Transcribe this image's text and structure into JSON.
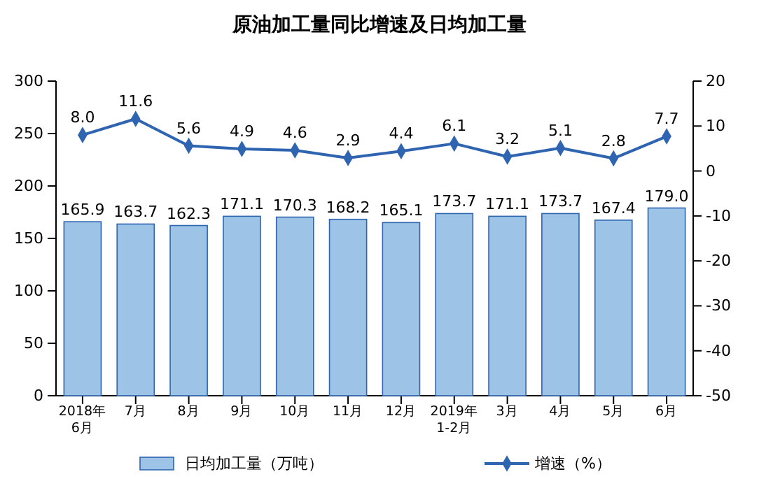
{
  "chart_data": {
    "type": "bar",
    "title": "原油加工量同比增速及日均加工量",
    "categories": [
      "2018年\n6月",
      "7月",
      "8月",
      "9月",
      "10月",
      "11月",
      "12月",
      "2019年\n1-2月",
      "3月",
      "4月",
      "5月",
      "6月"
    ],
    "series": [
      {
        "name": "日均加工量（万吨）",
        "color": "#9dc3e6",
        "values": [
          165.9,
          163.7,
          162.3,
          171.1,
          170.3,
          168.2,
          165.1,
          173.7,
          171.1,
          173.7,
          167.4,
          179.0
        ],
        "value_labels": [
          "165.9",
          "163.7",
          "162.3",
          "171.1",
          "170.3",
          "168.2",
          "165.1",
          "173.7",
          "171.1",
          "173.7",
          "167.4",
          "179.0"
        ]
      },
      {
        "name": "增速（%）",
        "type": "line",
        "axis": "y2",
        "color": "#2e64b0",
        "marker": "diamond",
        "values": [
          8.0,
          11.6,
          5.6,
          4.9,
          4.6,
          2.9,
          4.4,
          6.1,
          3.2,
          5.1,
          2.8,
          7.7
        ],
        "value_labels": [
          "8.0",
          "11.6",
          "5.6",
          "4.9",
          "4.6",
          "2.9",
          "4.4",
          "6.1",
          "3.2",
          "5.1",
          "2.8",
          "7.7"
        ]
      }
    ],
    "ylim": [
      0,
      300
    ],
    "yticks": [
      0,
      50,
      100,
      150,
      200,
      250,
      300
    ],
    "y2lim": [
      -50,
      20
    ],
    "y2ticks": [
      -50,
      -40,
      -30,
      -20,
      -10,
      0,
      10,
      20
    ],
    "grid": false,
    "legend": "bottom"
  }
}
